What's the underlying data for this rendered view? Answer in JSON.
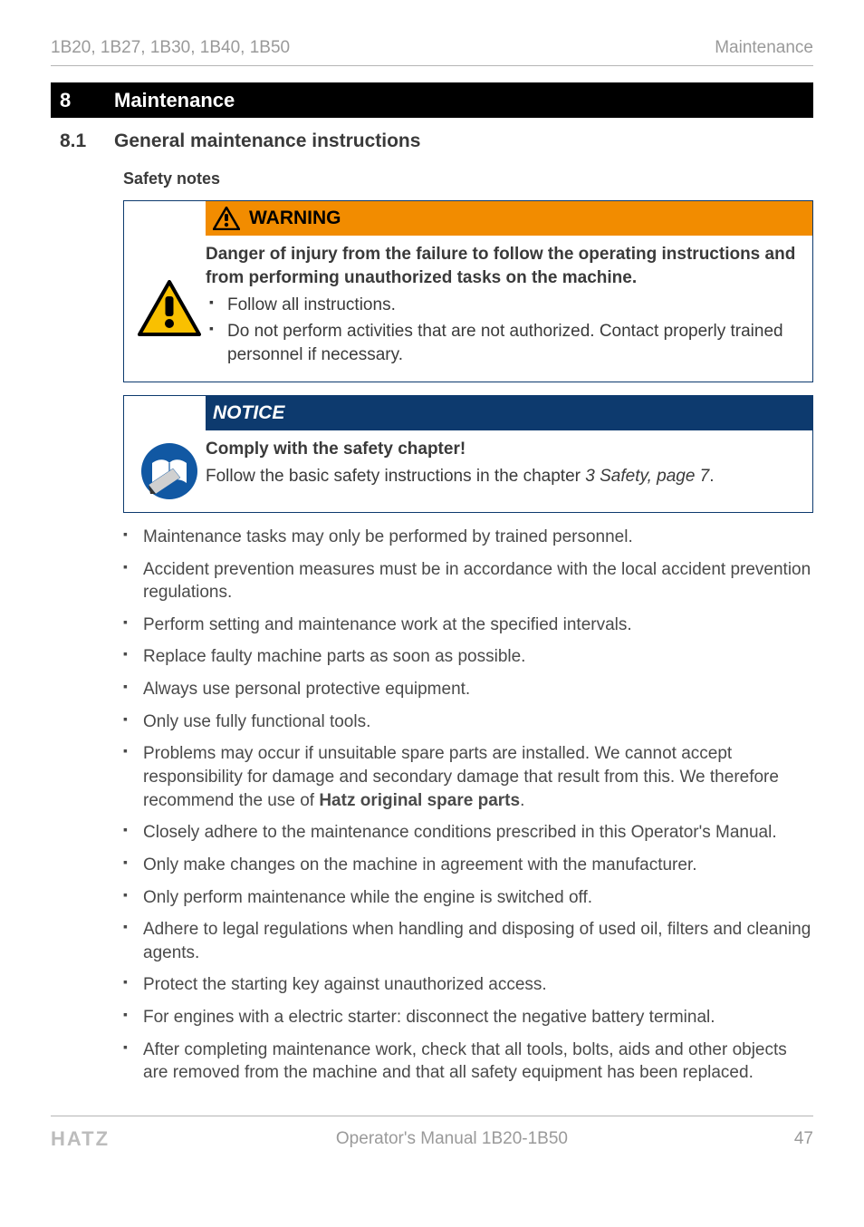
{
  "header": {
    "left": "1B20, 1B27, 1B30, 1B40, 1B50",
    "right": "Maintenance"
  },
  "chapter": {
    "num": "8",
    "title": "Maintenance"
  },
  "section": {
    "num": "8.1",
    "title": "General maintenance instructions"
  },
  "safety_notes_heading": "Safety notes",
  "warning": {
    "label": "WARNING",
    "lead": "Danger of injury from the failure to follow the operating instructions and from performing unauthorized tasks on the machine.",
    "bullets": [
      "Follow all instructions.",
      "Do not perform activities that are not authorized. Contact properly trained personnel if necessary."
    ],
    "colors": {
      "header_bg": "#f28c00",
      "border": "#0d3a6e",
      "triangle_border": "#000000",
      "triangle_fill": "#f9c000",
      "bang": "#000000"
    }
  },
  "notice": {
    "label": "NOTICE",
    "lead_bold": "Comply with the safety chapter!",
    "body_pre": "Follow the basic safety instructions in the chapter ",
    "body_italic": "3 Safety, page 7",
    "body_post": ".",
    "colors": {
      "header_bg": "#0d3a6e",
      "icon_circle": "#1158a3",
      "icon_inner": "#ffffff"
    }
  },
  "bullets": [
    "Maintenance tasks may only be performed by trained personnel.",
    "Accident prevention measures must be in accordance with the local accident prevention regulations.",
    "Perform setting and maintenance work at the specified intervals.",
    "Replace faulty machine parts as soon as possible.",
    "Always use personal protective equipment.",
    "Only use fully functional tools.",
    "Problems may occur if unsuitable spare parts are installed. We cannot accept responsibility for damage and secondary damage that result from this. We therefore recommend the use of <b>Hatz original spare parts</b>.",
    "Closely adhere to the maintenance conditions prescribed in this Operator's Manual.",
    "Only make changes on the machine in agreement with the manufacturer.",
    "Only perform maintenance while the engine is switched off.",
    "Adhere to legal regulations when handling and disposing of used oil, filters and cleaning agents.",
    "Protect the starting key against unauthorized access.",
    "For engines with a electric starter: disconnect the negative battery terminal.",
    "After completing maintenance work, check that all tools, bolts, aids and other objects are removed from the machine and that all safety equipment has been replaced."
  ],
  "footer": {
    "brand": "HATZ",
    "center": "Operator's Manual 1B20-1B50",
    "page": "47"
  }
}
